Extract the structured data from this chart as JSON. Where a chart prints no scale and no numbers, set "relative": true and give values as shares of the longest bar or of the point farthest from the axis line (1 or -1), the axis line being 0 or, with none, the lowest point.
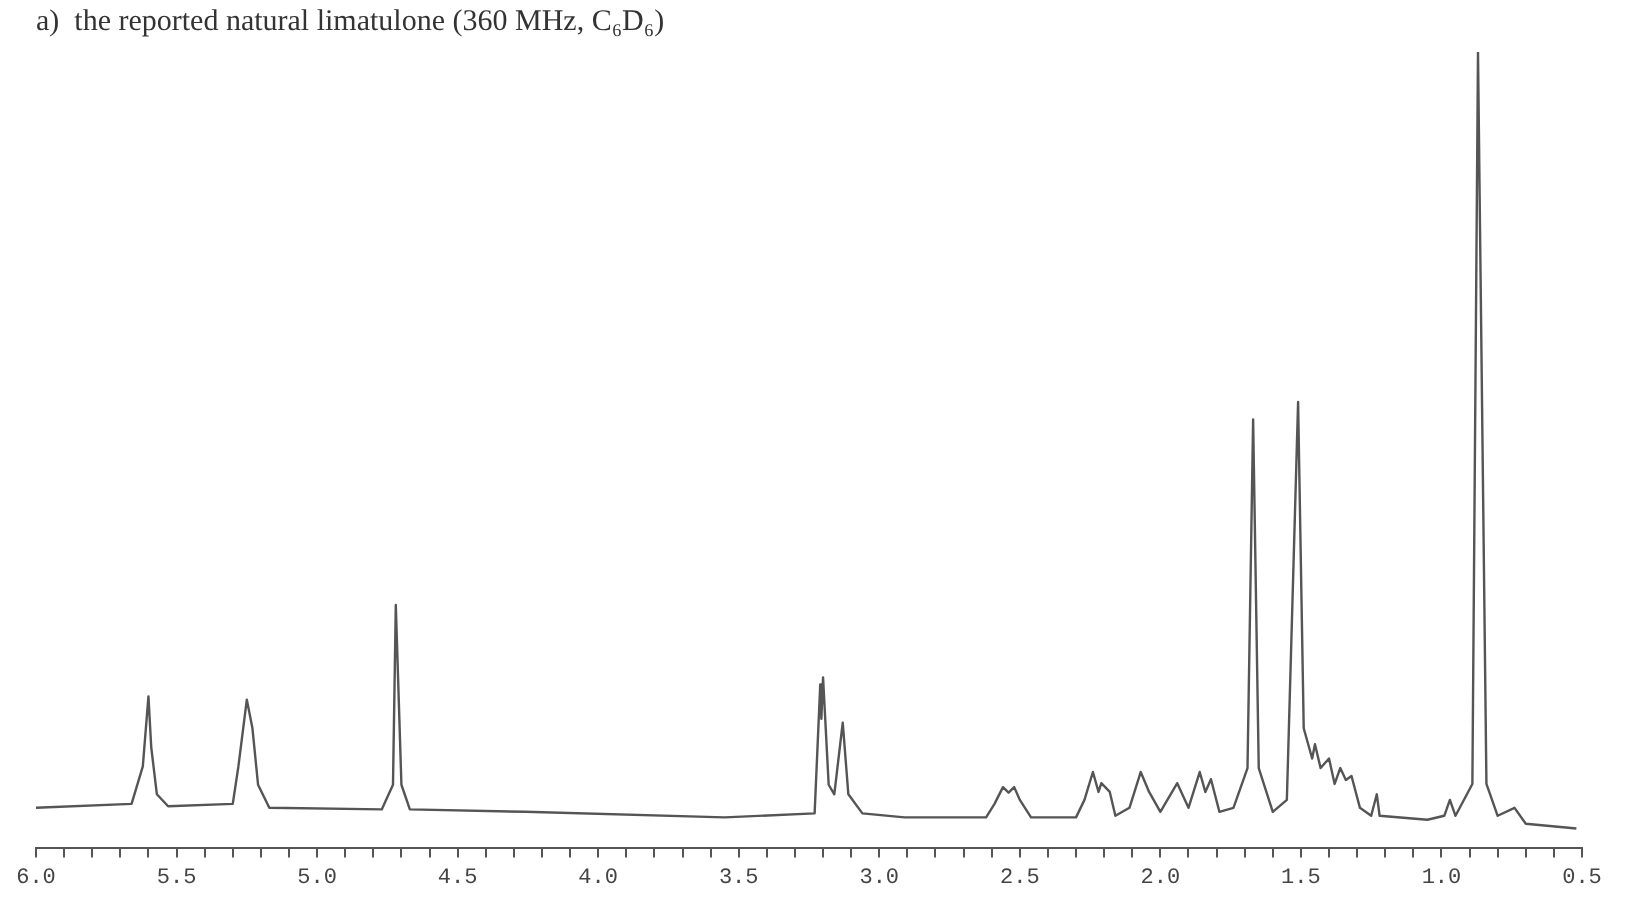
{
  "chart_data": {
    "type": "line",
    "title": "a)  the reported natural limatulone (360 MHz, C₆D₆)",
    "relative": true,
    "grid": false,
    "legend": false,
    "marker": "none",
    "line_style": "solid",
    "tick_labels": "x",
    "xlim": [
      6.0,
      0.5
    ],
    "xticks": [
      {
        "value": 6.0,
        "label": "6.0"
      },
      {
        "value": 5.9,
        "label": null
      },
      {
        "value": 5.8,
        "label": null
      },
      {
        "value": 5.7,
        "label": null
      },
      {
        "value": 5.6,
        "label": null
      },
      {
        "value": 5.5,
        "label": "5.5"
      },
      {
        "value": 5.4,
        "label": null
      },
      {
        "value": 5.3,
        "label": null
      },
      {
        "value": 5.2,
        "label": null
      },
      {
        "value": 5.1,
        "label": null
      },
      {
        "value": 5.0,
        "label": "5.0"
      },
      {
        "value": 4.9,
        "label": null
      },
      {
        "value": 4.8,
        "label": null
      },
      {
        "value": 4.7,
        "label": null
      },
      {
        "value": 4.6,
        "label": null
      },
      {
        "value": 4.5,
        "label": "4.5"
      },
      {
        "value": 4.4,
        "label": null
      },
      {
        "value": 4.3,
        "label": null
      },
      {
        "value": 4.2,
        "label": null
      },
      {
        "value": 4.1,
        "label": null
      },
      {
        "value": 4.0,
        "label": "4.0"
      },
      {
        "value": 3.9,
        "label": null
      },
      {
        "value": 3.8,
        "label": null
      },
      {
        "value": 3.7,
        "label": null
      },
      {
        "value": 3.6,
        "label": null
      },
      {
        "value": 3.5,
        "label": "3.5"
      },
      {
        "value": 3.4,
        "label": null
      },
      {
        "value": 3.3,
        "label": null
      },
      {
        "value": 3.2,
        "label": null
      },
      {
        "value": 3.1,
        "label": null
      },
      {
        "value": 3.0,
        "label": "3.0"
      },
      {
        "value": 2.9,
        "label": null
      },
      {
        "value": 2.8,
        "label": null
      },
      {
        "value": 2.7,
        "label": null
      },
      {
        "value": 2.6,
        "label": null
      },
      {
        "value": 2.5,
        "label": "2.5"
      },
      {
        "value": 2.4,
        "label": null
      },
      {
        "value": 2.3,
        "label": null
      },
      {
        "value": 2.2,
        "label": null
      },
      {
        "value": 2.1,
        "label": null
      },
      {
        "value": 2.0,
        "label": "2.0"
      },
      {
        "value": 1.9,
        "label": null
      },
      {
        "value": 1.8,
        "label": null
      },
      {
        "value": 1.7,
        "label": null
      },
      {
        "value": 1.6,
        "label": null
      },
      {
        "value": 1.5,
        "label": "1.5"
      },
      {
        "value": 1.4,
        "label": null
      },
      {
        "value": 1.3,
        "label": null
      },
      {
        "value": 1.2,
        "label": null
      },
      {
        "value": 1.1,
        "label": null
      },
      {
        "value": 1.0,
        "label": "1.0"
      },
      {
        "value": 0.9,
        "label": null
      },
      {
        "value": 0.8,
        "label": null
      },
      {
        "value": 0.7,
        "label": null
      },
      {
        "value": 0.6,
        "label": null
      },
      {
        "value": 0.5,
        "label": "0.5"
      }
    ],
    "series": [
      {
        "color": "#555555",
        "x": [
          6.0,
          5.66,
          5.62,
          5.6,
          5.59,
          5.57,
          5.53,
          5.3,
          5.28,
          5.25,
          5.23,
          5.21,
          5.17,
          4.77,
          4.73,
          4.72,
          4.7,
          4.67,
          4.26,
          3.55,
          3.23,
          3.21,
          3.206,
          3.2,
          3.18,
          3.16,
          3.13,
          3.11,
          3.06,
          2.91,
          2.62,
          2.59,
          2.56,
          2.54,
          2.52,
          2.5,
          2.46,
          2.3,
          2.27,
          2.24,
          2.22,
          2.21,
          2.18,
          2.16,
          2.11,
          2.07,
          2.04,
          2.0,
          1.94,
          1.9,
          1.86,
          1.84,
          1.82,
          1.79,
          1.74,
          1.69,
          1.67,
          1.65,
          1.6,
          1.55,
          1.51,
          1.49,
          1.46,
          1.45,
          1.43,
          1.4,
          1.38,
          1.36,
          1.34,
          1.32,
          1.29,
          1.25,
          1.23,
          1.22,
          1.05,
          0.99,
          0.97,
          0.95,
          0.89,
          0.87,
          0.84,
          0.8,
          0.74,
          0.7,
          0.52
        ],
        "values": [
          0.05,
          0.055,
          0.102,
          0.19,
          0.126,
          0.067,
          0.052,
          0.055,
          0.102,
          0.186,
          0.15,
          0.079,
          0.05,
          0.048,
          0.079,
          0.305,
          0.079,
          0.048,
          0.045,
          0.038,
          0.043,
          0.205,
          0.162,
          0.214,
          0.079,
          0.067,
          0.157,
          0.067,
          0.043,
          0.038,
          0.038,
          0.055,
          0.076,
          0.069,
          0.076,
          0.06,
          0.038,
          0.038,
          0.06,
          0.095,
          0.07,
          0.081,
          0.07,
          0.04,
          0.05,
          0.095,
          0.07,
          0.045,
          0.081,
          0.05,
          0.095,
          0.07,
          0.086,
          0.045,
          0.05,
          0.1,
          0.538,
          0.1,
          0.045,
          0.06,
          0.56,
          0.15,
          0.112,
          0.13,
          0.1,
          0.112,
          0.08,
          0.1,
          0.085,
          0.09,
          0.05,
          0.04,
          0.067,
          0.04,
          0.035,
          0.04,
          0.06,
          0.04,
          0.08,
          1.0,
          0.08,
          0.04,
          0.05,
          0.03,
          0.024
        ]
      }
    ]
  }
}
